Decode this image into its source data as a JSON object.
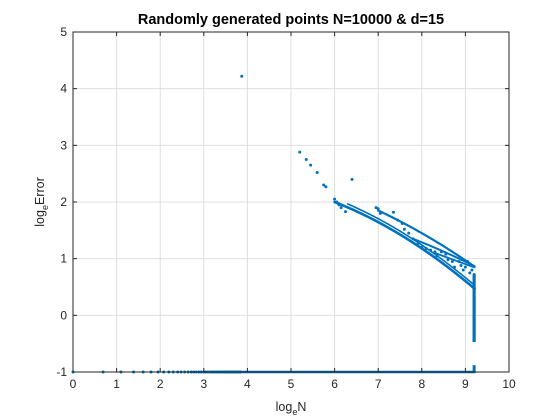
{
  "chart_data": {
    "type": "scatter",
    "title": "Randomly generated points N=10000 & d=15",
    "xlabel": {
      "base": "log",
      "sub": "e",
      "rest": "N"
    },
    "ylabel": {
      "base": "log",
      "sub": "e",
      "rest": "Error"
    },
    "xlim": [
      0,
      10
    ],
    "ylim": [
      -1,
      5
    ],
    "xticks": [
      "0",
      "1",
      "2",
      "3",
      "4",
      "5",
      "6",
      "7",
      "8",
      "9",
      "10"
    ],
    "yticks": [
      "-1",
      "0",
      "1",
      "2",
      "3",
      "4",
      "5"
    ],
    "grid": true,
    "marker_color": "#0072BD",
    "series": [
      {
        "points": [
          [
            0.0,
            -1.0
          ],
          [
            0.69,
            -1.0
          ],
          [
            1.1,
            -1.0
          ],
          [
            1.39,
            -1.0
          ],
          [
            1.61,
            -1.0
          ],
          [
            1.79,
            -1.0
          ],
          [
            1.95,
            -1.0
          ],
          [
            2.08,
            -1.0
          ],
          [
            2.2,
            -1.0
          ],
          [
            2.3,
            -1.0
          ],
          [
            2.4,
            -1.0
          ],
          [
            2.48,
            -1.0
          ],
          [
            2.56,
            -1.0
          ],
          [
            2.64,
            -1.0
          ],
          [
            2.71,
            -1.0
          ],
          [
            2.77,
            -1.0
          ],
          [
            2.83,
            -1.0
          ],
          [
            2.89,
            -1.0
          ],
          [
            2.94,
            -1.0
          ],
          [
            3.0,
            -1.0
          ],
          [
            3.04,
            -1.0
          ],
          [
            3.09,
            -1.0
          ],
          [
            3.14,
            -1.0
          ],
          [
            3.18,
            -1.0
          ],
          [
            3.22,
            -1.0
          ],
          [
            3.26,
            -1.0
          ],
          [
            3.3,
            -1.0
          ],
          [
            3.33,
            -1.0
          ],
          [
            3.37,
            -1.0
          ],
          [
            3.4,
            -1.0
          ],
          [
            3.43,
            -1.0
          ],
          [
            3.47,
            -1.0
          ],
          [
            3.5,
            -1.0
          ],
          [
            3.53,
            -1.0
          ],
          [
            3.56,
            -1.0
          ],
          [
            3.58,
            -1.0
          ],
          [
            3.61,
            -1.0
          ],
          [
            3.64,
            -1.0
          ],
          [
            3.66,
            -1.0
          ],
          [
            3.69,
            -1.0
          ],
          [
            3.71,
            -1.0
          ],
          [
            3.74,
            -1.0
          ],
          [
            3.76,
            -1.0
          ],
          [
            3.78,
            -1.0
          ],
          [
            3.81,
            -1.0
          ],
          [
            3.83,
            -1.0
          ],
          [
            3.85,
            -1.0
          ],
          [
            3.87,
            4.22
          ],
          [
            5.2,
            2.88
          ],
          [
            5.35,
            2.75
          ],
          [
            5.45,
            2.65
          ],
          [
            5.6,
            2.52
          ],
          [
            5.75,
            2.3
          ],
          [
            5.8,
            2.27
          ],
          [
            6.0,
            2.05
          ],
          [
            6.05,
            2.0
          ],
          [
            6.1,
            1.95
          ],
          [
            6.15,
            1.9
          ],
          [
            6.25,
            1.83
          ],
          [
            6.4,
            2.4
          ],
          [
            6.95,
            1.9
          ],
          [
            7.0,
            1.88
          ],
          [
            7.05,
            1.8
          ],
          [
            7.35,
            1.82
          ],
          [
            7.45,
            1.68
          ],
          [
            7.55,
            1.62
          ],
          [
            7.6,
            1.52
          ],
          [
            7.7,
            1.45
          ],
          [
            7.8,
            1.35
          ],
          [
            7.9,
            1.25
          ],
          [
            8.0,
            1.2
          ],
          [
            8.1,
            1.18
          ],
          [
            8.2,
            1.15
          ],
          [
            8.3,
            1.12
          ],
          [
            8.35,
            1.05
          ],
          [
            8.45,
            1.12
          ],
          [
            8.55,
            1.08
          ],
          [
            8.6,
            0.98
          ],
          [
            8.7,
            0.95
          ],
          [
            8.75,
            0.85
          ],
          [
            8.85,
            0.95
          ],
          [
            8.9,
            0.88
          ],
          [
            8.95,
            0.8
          ],
          [
            9.0,
            0.85
          ],
          [
            9.05,
            0.95
          ],
          [
            9.1,
            0.75
          ],
          [
            9.15,
            0.8
          ],
          [
            9.2,
            0.72
          ]
        ]
      }
    ]
  }
}
